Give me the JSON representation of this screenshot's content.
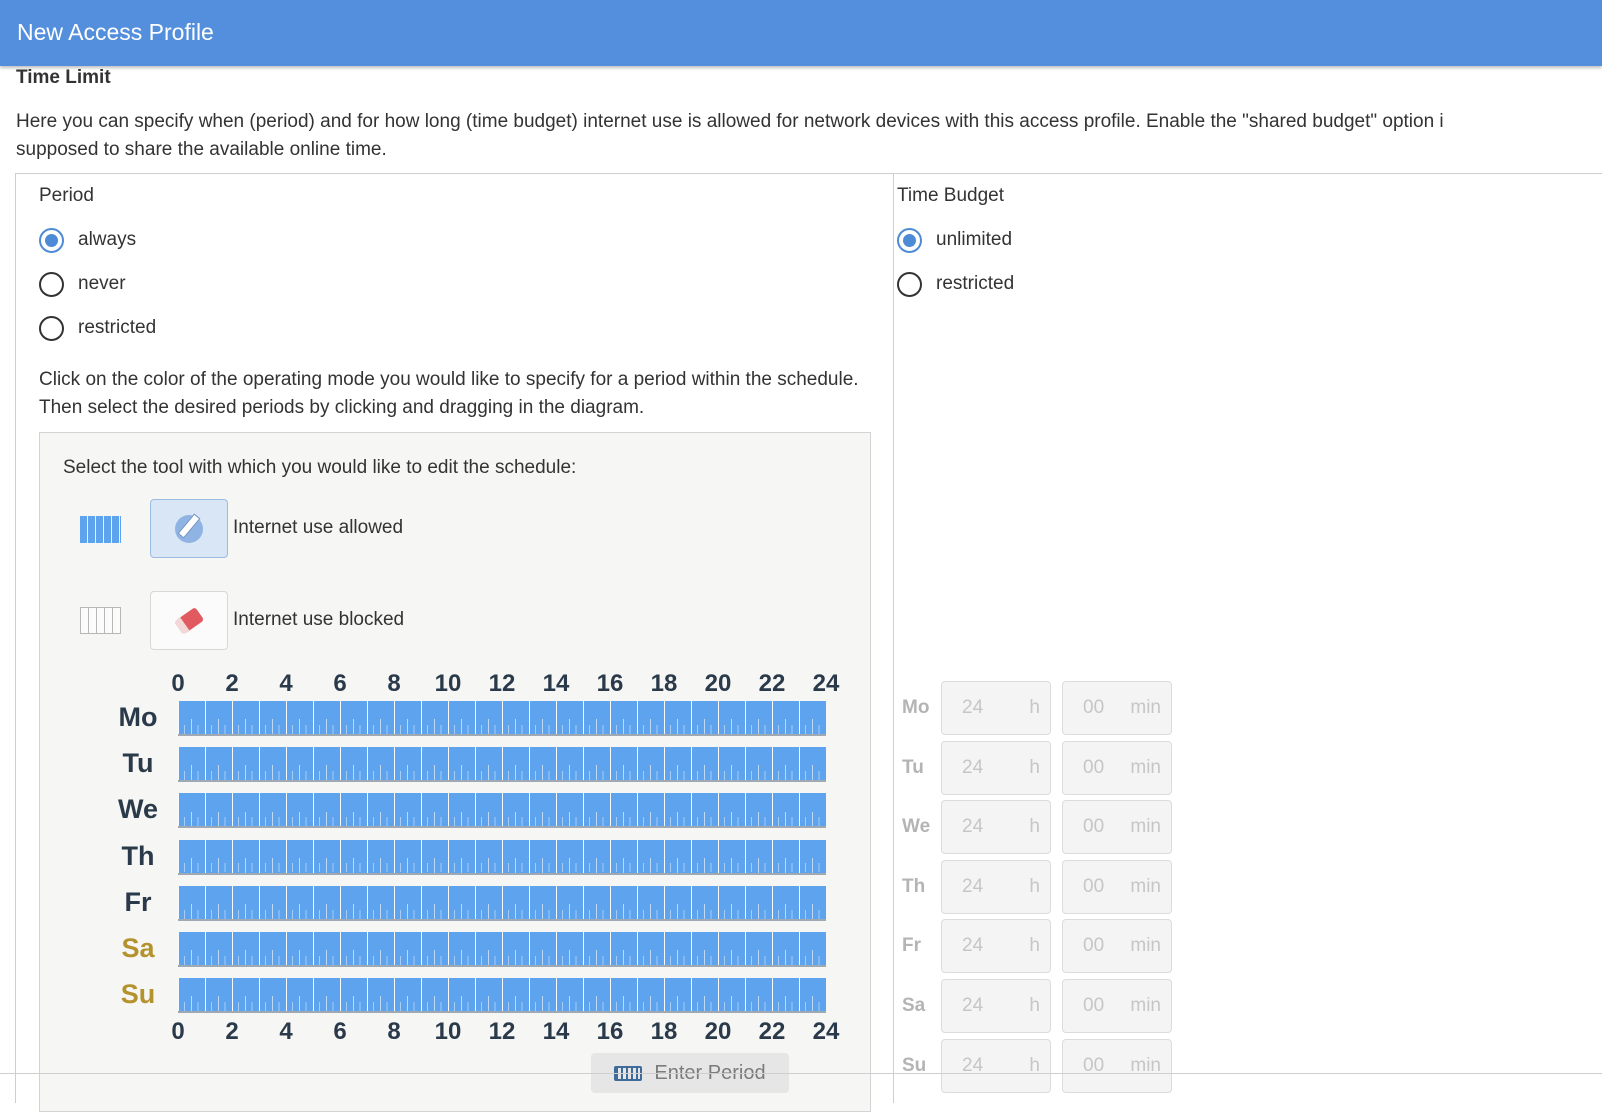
{
  "window": {
    "title": "New Access Profile"
  },
  "section": {
    "title": "Time Limit",
    "intro_line1": "Here you can specify when (period) and for how long (time budget) internet use is allowed for network devices with this access profile. Enable the \"shared budget\" option i",
    "intro_line2": "supposed to share the available online time."
  },
  "period": {
    "title": "Period",
    "options": [
      {
        "label": "always",
        "checked": true
      },
      {
        "label": "never",
        "checked": false
      },
      {
        "label": "restricted",
        "checked": false
      }
    ],
    "hint": "Click on the color of the operating mode you would like to specify for a period within the schedule. Then select the desired periods by clicking and dragging in the diagram."
  },
  "tools": {
    "prompt": "Select the tool with which you would like to edit the schedule:",
    "allowed_label": "Internet use allowed",
    "blocked_label": "Internet use blocked",
    "selected_tool": "allowed",
    "allowed_color": "#5ea3ee"
  },
  "schedule": {
    "hours": [
      "0",
      "2",
      "4",
      "6",
      "8",
      "10",
      "12",
      "14",
      "16",
      "18",
      "20",
      "22",
      "24"
    ],
    "days": [
      {
        "label": "Mo",
        "weekend": false,
        "mode": "allowed"
      },
      {
        "label": "Tu",
        "weekend": false,
        "mode": "allowed"
      },
      {
        "label": "We",
        "weekend": false,
        "mode": "allowed"
      },
      {
        "label": "Th",
        "weekend": false,
        "mode": "allowed"
      },
      {
        "label": "Fr",
        "weekend": false,
        "mode": "allowed"
      },
      {
        "label": "Sa",
        "weekend": true,
        "mode": "allowed"
      },
      {
        "label": "Su",
        "weekend": true,
        "mode": "allowed"
      }
    ],
    "enter_period_label": "Enter Period"
  },
  "budget": {
    "title": "Time Budget",
    "options": [
      {
        "label": "unlimited",
        "checked": true
      },
      {
        "label": "restricted",
        "checked": false
      }
    ],
    "hour_unit": "h",
    "minute_unit": "min",
    "days": [
      {
        "label": "Mo",
        "hours": "24",
        "minutes": "00"
      },
      {
        "label": "Tu",
        "hours": "24",
        "minutes": "00"
      },
      {
        "label": "We",
        "hours": "24",
        "minutes": "00"
      },
      {
        "label": "Th",
        "hours": "24",
        "minutes": "00"
      },
      {
        "label": "Fr",
        "hours": "24",
        "minutes": "00"
      },
      {
        "label": "Sa",
        "hours": "24",
        "minutes": "00"
      },
      {
        "label": "Su",
        "hours": "24",
        "minutes": "00"
      }
    ]
  }
}
